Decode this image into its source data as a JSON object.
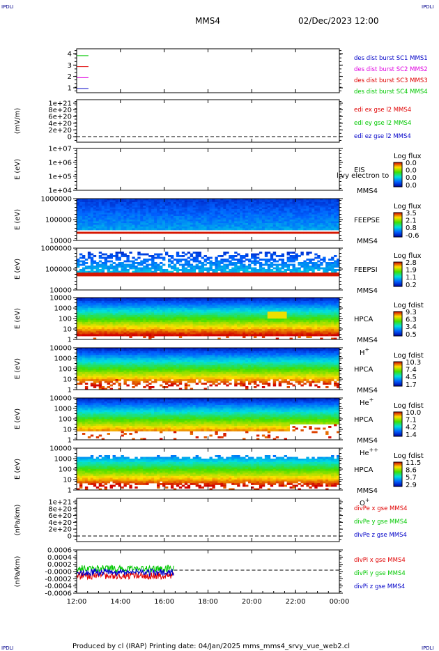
{
  "corners": [
    "IPDLI",
    "IPDLI",
    "IPDLI",
    "IPDLI"
  ],
  "header": {
    "spacecraft": "MMS4",
    "datetime": "02/Dec/2023 12:00"
  },
  "footer": {
    "text": "Produced by cl (IRAP)   Printing date: 04/Jan/2025   mms_mms4_srvy_vue_web2.cl"
  },
  "colors": {
    "red": "#e00000",
    "green": "#00c800",
    "blue": "#0000c8",
    "magenta": "#e000e0",
    "darkblue": "#00008b"
  },
  "chart_data": {
    "type": "multi-panel time series",
    "x_tick_labels": [
      "12:00",
      "14:00",
      "16:00",
      "18:00",
      "20:00",
      "22:00",
      "00:00"
    ],
    "panels": [
      {
        "id": "burst",
        "type": "line",
        "y_tick_labels": [
          "4",
          "3",
          "2",
          "1"
        ],
        "series": [
          {
            "name": "des dist burst SC1 MMS1",
            "color": "#0000c8",
            "level": 1
          },
          {
            "name": "des dist burst SC2 MMS2",
            "color": "#e000e0",
            "level": 2
          },
          {
            "name": "des dist burst SC3 MMS3",
            "color": "#e00000",
            "level": 3
          },
          {
            "name": "des dist burst SC4 MMS4",
            "color": "#00c800",
            "level": 4
          }
        ],
        "x_coverage": [
          0,
          0.25
        ]
      },
      {
        "id": "edi",
        "type": "line",
        "ylabel": "(mV/m)",
        "y_tick_labels": [
          "1e+21",
          "8e+20",
          "6e+20",
          "4e+20",
          "2e+20",
          "0"
        ],
        "series": [
          {
            "name": "edi ex gse l2 MMS4",
            "color": "#e00000"
          },
          {
            "name": "edi ey gse l2 MMS4",
            "color": "#00c800"
          },
          {
            "name": "edi ez gse l2 MMS4",
            "color": "#0000c8"
          }
        ]
      },
      {
        "id": "eis",
        "type": "heatmap",
        "ylabel": "E (eV)",
        "y_tick_labels": [
          "1e+07",
          "1e+06",
          "1e+05",
          "1e+04"
        ],
        "instrument": "EIS",
        "probe": "MMS4",
        "overlay_text": "l:vy electron to",
        "colorbar": {
          "title": "Log flux",
          "ticks": [
            "0.0",
            "0.0",
            "0.0",
            "0.0"
          ]
        }
      },
      {
        "id": "feepse",
        "type": "heatmap",
        "ylabel": "E (eV)",
        "y_tick_labels": [
          "1000000",
          "100000",
          "10000"
        ],
        "instrument": "FEEPSE",
        "probe": "MMS4",
        "colorbar": {
          "title": "Log flux",
          "ticks": [
            "3.5",
            "2.1",
            "0.8",
            "-0.6"
          ]
        }
      },
      {
        "id": "feepsi",
        "type": "heatmap",
        "ylabel": "E (eV)",
        "y_tick_labels": [
          "1000000",
          "100000",
          "10000"
        ],
        "instrument": "FEEPSI",
        "probe": "MMS4",
        "colorbar": {
          "title": "Log flux",
          "ticks": [
            "2.8",
            "1.9",
            "1.1",
            "0.2"
          ]
        }
      },
      {
        "id": "hpca_h",
        "type": "heatmap",
        "ylabel": "E (eV)",
        "y_tick_labels": [
          "10000",
          "1000",
          "100",
          "10",
          "1"
        ],
        "instrument": "HPCA",
        "probe": "MMS4",
        "species": "H",
        "species_sup": "+",
        "colorbar": {
          "title": "Log fdist",
          "ticks": [
            "9.3",
            "6.3",
            "3.4",
            "0.5"
          ]
        }
      },
      {
        "id": "hpca_he",
        "type": "heatmap",
        "ylabel": "E (eV)",
        "y_tick_labels": [
          "10000",
          "1000",
          "100",
          "10",
          "1"
        ],
        "instrument": "HPCA",
        "probe": "MMS4",
        "species": "He",
        "species_sup": "+",
        "colorbar": {
          "title": "Log fdist",
          "ticks": [
            "10.3",
            "7.4",
            "4.5",
            "1.7"
          ]
        }
      },
      {
        "id": "hpca_he2",
        "type": "heatmap",
        "ylabel": "E (eV)",
        "y_tick_labels": [
          "10000",
          "1000",
          "100",
          "10",
          "1"
        ],
        "instrument": "HPCA",
        "probe": "MMS4",
        "species": "He",
        "species_sup": "++",
        "colorbar": {
          "title": "Log fdist",
          "ticks": [
            "10.0",
            "7.1",
            "4.2",
            "1.4"
          ]
        }
      },
      {
        "id": "hpca_o",
        "type": "heatmap",
        "ylabel": "E (eV)",
        "y_tick_labels": [
          "10000",
          "1000",
          "100",
          "10",
          "1"
        ],
        "instrument": "HPCA",
        "probe": "MMS4",
        "species": "O",
        "species_sup": "+",
        "colorbar": {
          "title": "Log fdist",
          "ticks": [
            "11.5",
            "8.6",
            "5.7",
            "2.9"
          ]
        }
      },
      {
        "id": "divpe",
        "type": "line",
        "ylabel": "(nPa/km)",
        "y_tick_labels": [
          "1e+21",
          "8e+20",
          "6e+20",
          "4e+20",
          "2e+20",
          "0"
        ],
        "series": [
          {
            "name": "divPe x gse MMS4",
            "color": "#e00000"
          },
          {
            "name": "divPe y gse MMS4",
            "color": "#00c800"
          },
          {
            "name": "divPe z gse MMS4",
            "color": "#0000c8"
          }
        ]
      },
      {
        "id": "divpi",
        "type": "line",
        "ylabel": "(nPa/km)",
        "y_tick_labels": [
          "0.0006",
          "0.0004",
          "0.0002",
          "-0.0000",
          "-0.0002",
          "-0.0004",
          "-0.0006"
        ],
        "series": [
          {
            "name": "divPi x gse MMS4",
            "color": "#e00000"
          },
          {
            "name": "divPi y gse MMS4",
            "color": "#00c800"
          },
          {
            "name": "divPi z gse MMS4",
            "color": "#0000c8"
          }
        ],
        "x_coverage": [
          0,
          0.37
        ]
      }
    ]
  }
}
